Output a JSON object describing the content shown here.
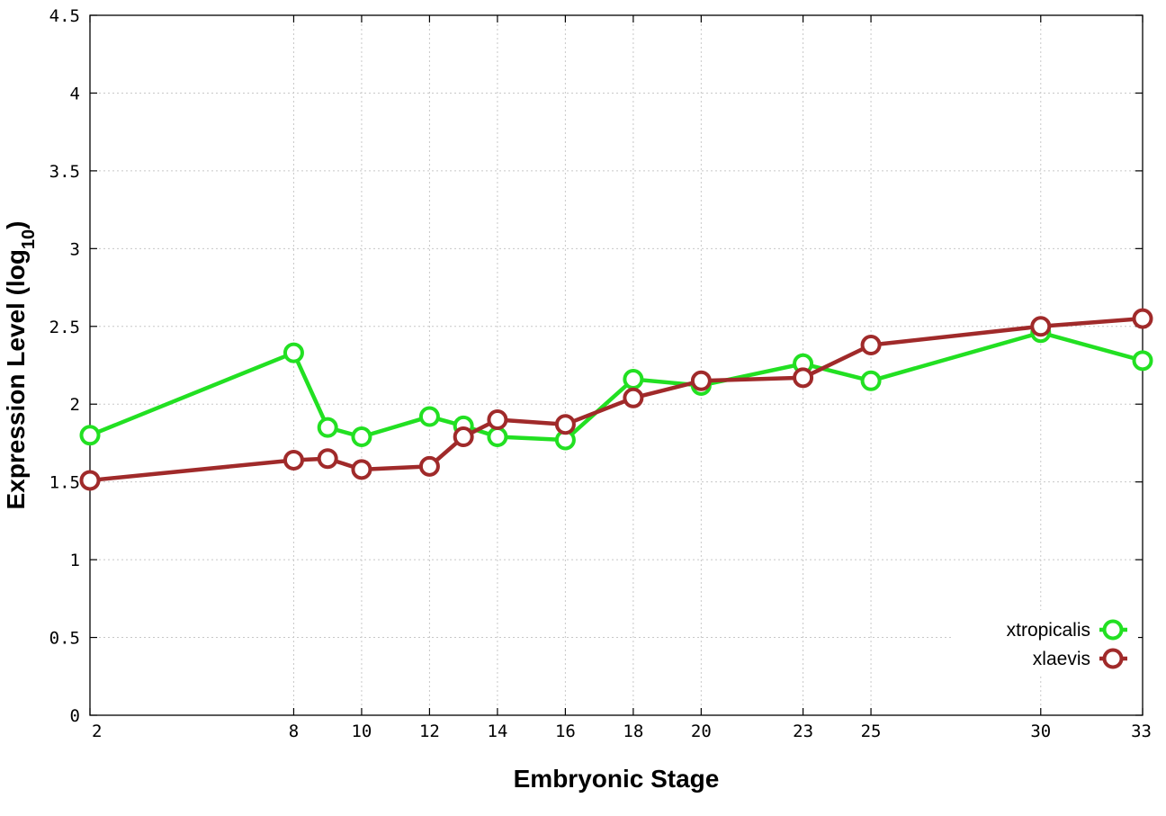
{
  "chart_data": {
    "type": "line",
    "xlabel": "Embryonic Stage",
    "ylabel_main": "Expression Level (log",
    "ylabel_sub": "10",
    "ylabel_close": ")",
    "xlim": [
      2,
      33
    ],
    "ylim": [
      0,
      4.5
    ],
    "x_ticks": [
      2,
      8,
      10,
      12,
      14,
      16,
      18,
      20,
      23,
      25,
      30,
      33
    ],
    "x_tick_labels": [
      "2",
      "8",
      "10",
      "12",
      "14",
      "16",
      "18",
      "20",
      "23",
      "25",
      "30",
      "33"
    ],
    "y_ticks": [
      0,
      0.5,
      1,
      1.5,
      2,
      2.5,
      3,
      3.5,
      4,
      4.5
    ],
    "y_tick_labels": [
      "0",
      "0.5",
      "1",
      "1.5",
      "2",
      "2.5",
      "3",
      "3.5",
      "4",
      "4.5"
    ],
    "grid": true,
    "legend_position": "bottom-right",
    "series": [
      {
        "name": "xtropicalis",
        "color": "#22e022",
        "x": [
          2,
          8,
          9,
          10,
          12,
          13,
          14,
          16,
          18,
          20,
          23,
          25,
          30,
          33
        ],
        "y": [
          1.8,
          2.33,
          1.85,
          1.79,
          1.92,
          1.86,
          1.79,
          1.77,
          2.16,
          2.12,
          2.26,
          2.15,
          2.46,
          2.28
        ]
      },
      {
        "name": "xlaevis",
        "color": "#a02a2a",
        "x": [
          2,
          8,
          9,
          10,
          12,
          13,
          14,
          16,
          18,
          20,
          23,
          25,
          30,
          33
        ],
        "y": [
          1.51,
          1.64,
          1.65,
          1.58,
          1.6,
          1.79,
          1.9,
          1.87,
          2.04,
          2.15,
          2.17,
          2.38,
          2.5,
          2.55
        ]
      }
    ]
  }
}
